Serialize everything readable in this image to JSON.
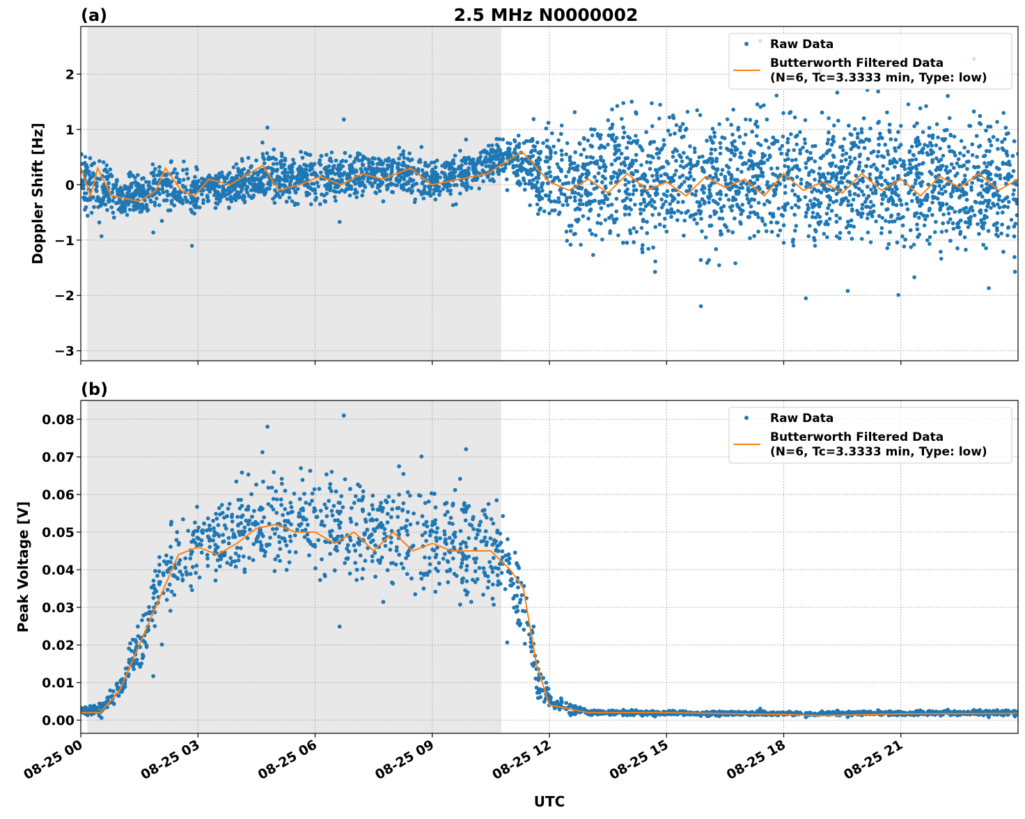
{
  "title": "2.5 MHz N0000002",
  "colors": {
    "raw": "#1f77b4",
    "filtered": "#ff7f0e",
    "shade": "#e8e8e8",
    "grid": "#b0b0b0"
  },
  "legend": {
    "raw": "Raw Data",
    "filtered_line1": "Butterworth Filtered Data",
    "filtered_line2": "(N=6, Tc=3.3333 min, Type: low)",
    "placement": "upper-right"
  },
  "xlabel": "UTC",
  "x_ticks": [
    "08-25 00",
    "08-25 03",
    "08-25 06",
    "08-25 09",
    "08-25 12",
    "08-25 15",
    "08-25 18",
    "08-25 21"
  ],
  "x_tick_times": [
    "00:00",
    "03:00",
    "06:00",
    "09:00",
    "12:00",
    "15:00",
    "18:00",
    "21:00"
  ],
  "xlim": [
    "00:00",
    "24:00"
  ],
  "shaded_region": [
    "00:10",
    "10:46"
  ],
  "chart_data": [
    {
      "type": "scatter",
      "panel_label": "(a)",
      "ylabel": "Doppler Shift [Hz]",
      "ylim": [
        -3.18,
        2.86
      ],
      "y_ticks": [
        2,
        1,
        0,
        -1,
        -2,
        -3
      ],
      "y_tick_labels": [
        "2",
        "1",
        "0",
        "−1",
        "−2",
        "−3"
      ],
      "grid": true,
      "raw_envelope": {
        "x": [
          "00:00",
          "01:00",
          "02:00",
          "03:00",
          "04:00",
          "05:00",
          "06:00",
          "07:00",
          "08:00",
          "09:00",
          "10:00",
          "11:00",
          "12:00",
          "13:00",
          "14:00",
          "16:00",
          "18:00",
          "20:00",
          "22:00",
          "24:00"
        ],
        "lower": [
          -0.7,
          -0.8,
          -0.6,
          -0.7,
          -0.5,
          -0.5,
          -0.5,
          -0.4,
          -0.3,
          -0.4,
          -0.2,
          0.0,
          -1.0,
          -1.5,
          -1.6,
          -1.6,
          -1.6,
          -1.6,
          -1.6,
          -1.6
        ],
        "upper": [
          1.0,
          0.2,
          0.6,
          0.5,
          0.5,
          0.8,
          0.7,
          0.8,
          0.7,
          0.6,
          0.7,
          1.1,
          1.3,
          1.6,
          1.8,
          1.8,
          1.8,
          1.8,
          1.7,
          1.6
        ],
        "outlier_range": [
          -2.9,
          2.6
        ]
      },
      "series": [
        {
          "name": "Butterworth Filtered Data",
          "x": [
            "00:00",
            "00:15",
            "00:26",
            "00:47",
            "01:30",
            "01:56",
            "02:10",
            "02:34",
            "02:55",
            "03:17",
            "03:49",
            "04:40",
            "05:04",
            "05:36",
            "06:08",
            "06:40",
            "07:12",
            "07:44",
            "08:27",
            "08:59",
            "09:42",
            "10:25",
            "11:18",
            "12:00",
            "12:30",
            "13:00",
            "13:30",
            "14:00",
            "14:30",
            "15:00",
            "15:30",
            "16:00",
            "16:30",
            "17:00",
            "17:30",
            "18:00",
            "18:30",
            "19:00",
            "19:30",
            "20:00",
            "20:30",
            "21:00",
            "21:30",
            "22:00",
            "22:30",
            "23:00",
            "23:30",
            "24:00"
          ],
          "y": [
            0.3,
            -0.2,
            0.3,
            -0.2,
            -0.3,
            -0.1,
            0.3,
            -0.1,
            -0.2,
            0.1,
            0.0,
            0.35,
            -0.1,
            0.0,
            0.15,
            0.0,
            0.2,
            0.1,
            0.3,
            0.0,
            0.1,
            0.2,
            0.6,
            0.05,
            -0.1,
            0.1,
            -0.15,
            0.2,
            -0.1,
            0.05,
            -0.2,
            0.15,
            -0.05,
            0.1,
            -0.2,
            0.2,
            -0.1,
            0.05,
            -0.15,
            0.2,
            -0.1,
            0.1,
            -0.2,
            0.15,
            -0.05,
            0.2,
            -0.1,
            0.1
          ]
        }
      ]
    },
    {
      "type": "scatter",
      "panel_label": "(b)",
      "ylabel": "Peak Voltage [V]",
      "ylim": [
        -0.0035,
        0.085
      ],
      "y_ticks": [
        0.08,
        0.07,
        0.06,
        0.05,
        0.04,
        0.03,
        0.02,
        0.01,
        0.0
      ],
      "y_tick_labels": [
        "0.08",
        "0.07",
        "0.06",
        "0.05",
        "0.04",
        "0.03",
        "0.02",
        "0.01",
        "0.00"
      ],
      "grid": true,
      "raw_envelope": {
        "x": [
          "00:00",
          "00:30",
          "01:00",
          "01:30",
          "02:00",
          "02:30",
          "03:00",
          "04:00",
          "05:00",
          "06:00",
          "07:00",
          "08:00",
          "09:00",
          "10:00",
          "10:45",
          "11:15",
          "11:40",
          "12:00",
          "12:30",
          "13:00",
          "18:00",
          "24:00"
        ],
        "lower": [
          0.001,
          0.001,
          0.004,
          0.01,
          0.02,
          0.028,
          0.03,
          0.033,
          0.035,
          0.033,
          0.032,
          0.03,
          0.03,
          0.025,
          0.025,
          0.02,
          0.005,
          0.002,
          0.001,
          0.001,
          0.001,
          0.001
        ],
        "upper": [
          0.004,
          0.005,
          0.012,
          0.03,
          0.05,
          0.06,
          0.063,
          0.068,
          0.07,
          0.072,
          0.07,
          0.068,
          0.068,
          0.066,
          0.063,
          0.05,
          0.02,
          0.008,
          0.006,
          0.003,
          0.0025,
          0.003
        ],
        "outlier_range": [
          0.0,
          0.081
        ]
      },
      "series": [
        {
          "name": "Butterworth Filtered Data",
          "x": [
            "00:00",
            "00:30",
            "01:00",
            "01:30",
            "02:00",
            "02:30",
            "03:00",
            "03:30",
            "04:00",
            "04:30",
            "05:00",
            "05:30",
            "06:00",
            "06:30",
            "07:00",
            "07:30",
            "08:00",
            "08:30",
            "09:00",
            "09:30",
            "10:00",
            "10:30",
            "11:00",
            "11:20",
            "11:40",
            "12:00",
            "12:30",
            "13:00",
            "15:00",
            "18:00",
            "19:00",
            "21:00",
            "24:00"
          ],
          "y": [
            0.002,
            0.002,
            0.008,
            0.02,
            0.032,
            0.044,
            0.046,
            0.044,
            0.047,
            0.051,
            0.052,
            0.05,
            0.05,
            0.047,
            0.05,
            0.045,
            0.05,
            0.045,
            0.047,
            0.045,
            0.045,
            0.045,
            0.04,
            0.035,
            0.015,
            0.004,
            0.003,
            0.002,
            0.002,
            0.0015,
            0.0012,
            0.0017,
            0.0018
          ]
        }
      ]
    }
  ]
}
